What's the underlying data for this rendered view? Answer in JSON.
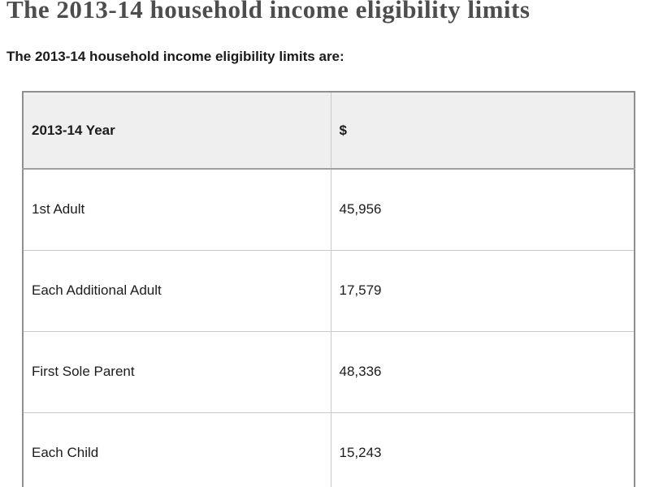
{
  "page": {
    "title": "The 2013-14 household income eligibility limits",
    "intro": "The 2013-14 household income eligibility limits are:"
  },
  "table": {
    "headers": {
      "category": "2013-14 Year",
      "amount": "$"
    },
    "rows": [
      {
        "label": "1st Adult",
        "value": "45,956"
      },
      {
        "label": "Each Additional Adult",
        "value": "17,579"
      },
      {
        "label": "First Sole Parent",
        "value": "48,336"
      },
      {
        "label": "Each Child",
        "value": "15,243"
      }
    ]
  },
  "chart_data": {
    "type": "table",
    "title": "The 2013-14 household income eligibility limits",
    "categories": [
      "1st Adult",
      "Each Additional Adult",
      "First Sole Parent",
      "Each Child"
    ],
    "values": [
      45956,
      17579,
      48336,
      15243
    ],
    "xlabel": "2013-14 Year",
    "ylabel": "$"
  },
  "colors": {
    "title_text": "#4d4d4d",
    "body_text": "#1c1c1c",
    "header_row_bg": "#efefef",
    "outer_border": "#8f8f8f",
    "inner_border": "#c9c9c9",
    "page_bg": "#ffffff"
  }
}
